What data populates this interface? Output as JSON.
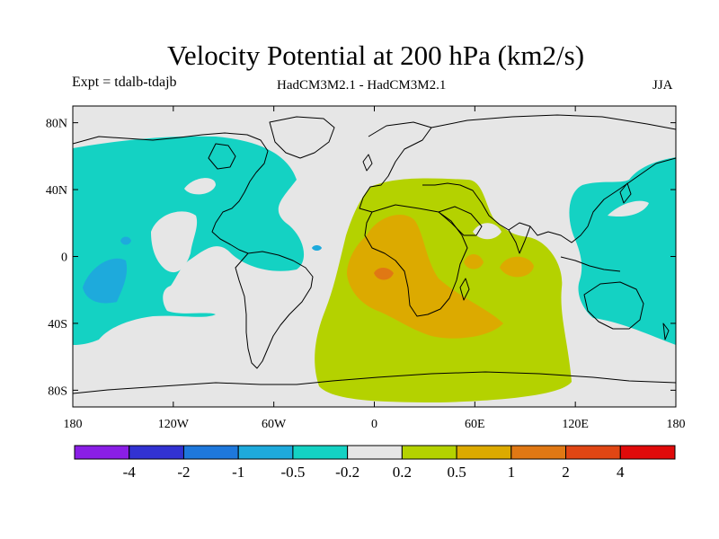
{
  "header": {
    "title": "Velocity Potential at 200 hPa (km2/s)",
    "experiment": "Expt = tdalb-tdajb",
    "models": "HadCM3M2.1 - HadCM3M2.1",
    "season": "JJA"
  },
  "map": {
    "lon_range": [
      -180,
      180
    ],
    "lat_range": [
      -90,
      90
    ],
    "background_color": "#e6e6e6",
    "x_ticks": [
      {
        "lon": -180,
        "label": "180"
      },
      {
        "lon": -120,
        "label": "120W"
      },
      {
        "lon": -60,
        "label": "60W"
      },
      {
        "lon": 0,
        "label": "0"
      },
      {
        "lon": 60,
        "label": "60E"
      },
      {
        "lon": 120,
        "label": "120E"
      },
      {
        "lon": 180,
        "label": "180"
      }
    ],
    "y_ticks": [
      {
        "lat": 80,
        "label": "80N"
      },
      {
        "lat": 40,
        "label": "40N"
      },
      {
        "lat": 0,
        "label": "0"
      },
      {
        "lat": -40,
        "label": "40S"
      },
      {
        "lat": -80,
        "label": "80S"
      }
    ]
  },
  "colorbar": {
    "colors": [
      "#8a1ee6",
      "#3232d2",
      "#1e78dc",
      "#1eaadc",
      "#14d2c3",
      "#e6e6e6",
      "#b4d200",
      "#dcaa00",
      "#e07814",
      "#e04614",
      "#e00a0a"
    ],
    "labels": [
      "-4",
      "-2",
      "-1",
      "-0.5",
      "-0.2",
      "0.2",
      "0.5",
      "1",
      "2",
      "4"
    ]
  }
}
